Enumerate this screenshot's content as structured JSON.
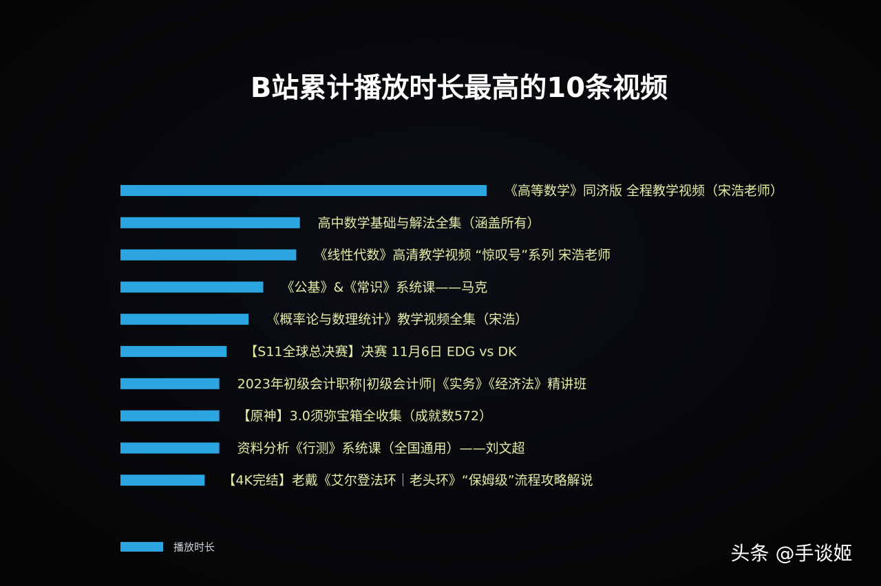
{
  "chart_data": {
    "type": "barh",
    "title": "B站累计播放时长最高的10条视频",
    "categories": [
      "《高等数学》同济版 全程教学视频（宋浩老师）",
      "高中数学基础与解法全集（涵盖所有）",
      "《线性代数》高清教学视频 “惊叹号”系列 宋浩老师",
      "《公基》&《常识》系统课——马克",
      "《概率论与数理统计》教学视频全集（宋浩）",
      "【S11全球总决赛】决赛 11月6日 EDG vs DK",
      "2023年初级会计职称|初级会计师|《实务》《经济法》精讲班",
      "【原神】3.0须弥宝箱全收集（成就数572）",
      "资料分析《行测》系统课（全国通用）——刘文超",
      "【4K完结】老戴《艾尔登法环｜老头环》“保姆级”流程攻略解说"
    ],
    "series": [
      {
        "name": "播放时长",
        "color": "#2ba6e0",
        "values": [
          100,
          49,
          48,
          39,
          35,
          29,
          27,
          27,
          27,
          23
        ]
      }
    ],
    "xlim": [
      0,
      100
    ],
    "legend": "bottom-left",
    "watermark": "头条 @手谈姬"
  }
}
